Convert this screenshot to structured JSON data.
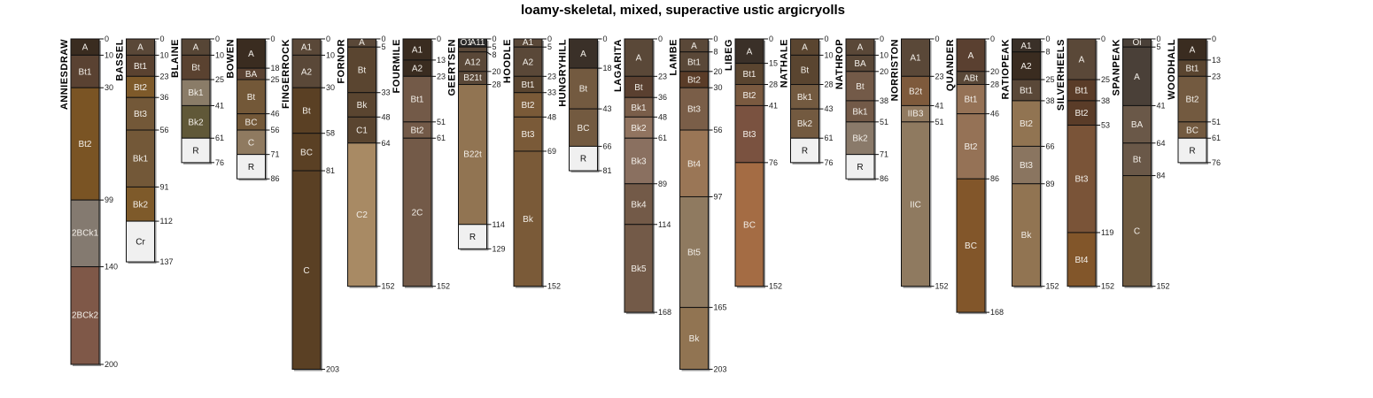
{
  "chart_data": {
    "type": "soil-profile",
    "title": "loamy-skeletal, mixed, superactive ustic argicryolls",
    "depth_unit": "cm",
    "profiles": [
      {
        "name": "ANNIESDRAW",
        "horizons": [
          [
            "A",
            0,
            10,
            "#3a2c20"
          ],
          [
            "Bt1",
            10,
            30,
            "#5a4232"
          ],
          [
            "Bt2",
            30,
            99,
            "#7a5424"
          ],
          [
            "2BCk1",
            99,
            140,
            "#847a70"
          ],
          [
            "2BCk2",
            140,
            200,
            "#7f5848"
          ]
        ]
      },
      {
        "name": "BASSEL",
        "horizons": [
          [
            "A",
            0,
            10,
            "#5a4838"
          ],
          [
            "Bt1",
            10,
            23,
            "#5a4230"
          ],
          [
            "Bt2",
            23,
            36,
            "#7e5a2a"
          ],
          [
            "Bt3",
            36,
            56,
            "#735838"
          ],
          [
            "Bk1",
            56,
            91,
            "#735838"
          ],
          [
            "Bk2",
            91,
            112,
            "#7e5a2a"
          ],
          [
            "Cr",
            112,
            137,
            "#f0f0f0"
          ]
        ]
      },
      {
        "name": "BLAINE",
        "horizons": [
          [
            "A",
            0,
            10,
            "#574636"
          ],
          [
            "Bt",
            10,
            25,
            "#5a4230"
          ],
          [
            "Bk1",
            25,
            41,
            "#8a7c68"
          ],
          [
            "Bk2",
            41,
            61,
            "#605838"
          ],
          [
            "R",
            61,
            76,
            "#f0f0f0"
          ]
        ]
      },
      {
        "name": "BOWEN",
        "horizons": [
          [
            "A",
            0,
            18,
            "#3a2c20"
          ],
          [
            "BA",
            18,
            25,
            "#5a4232"
          ],
          [
            "Bt",
            25,
            46,
            "#735838"
          ],
          [
            "BC",
            46,
            56,
            "#735838"
          ],
          [
            "C",
            56,
            71,
            "#8f7a60"
          ],
          [
            "R",
            71,
            86,
            "#f0f0f0"
          ]
        ]
      },
      {
        "name": "FINGERROCK",
        "horizons": [
          [
            "A1",
            0,
            10,
            "#5a4838"
          ],
          [
            "A2",
            10,
            30,
            "#5a4838"
          ],
          [
            "Bt",
            30,
            58,
            "#5a4024"
          ],
          [
            "BC",
            58,
            81,
            "#5a4024"
          ],
          [
            "C",
            81,
            203,
            "#5a4024"
          ]
        ]
      },
      {
        "name": "FORNOR",
        "horizons": [
          [
            "A",
            0,
            5,
            "#5a4838"
          ],
          [
            "Bt",
            5,
            33,
            "#5a4530"
          ],
          [
            "Bk",
            33,
            48,
            "#5a4530"
          ],
          [
            "C1",
            48,
            64,
            "#5a4530"
          ],
          [
            "C2",
            64,
            152,
            "#a88a64"
          ]
        ]
      },
      {
        "name": "FOURMILE",
        "horizons": [
          [
            "A1",
            0,
            13,
            "#3a2c20"
          ],
          [
            "A2",
            13,
            23,
            "#3a2c20"
          ],
          [
            "Bt1",
            23,
            51,
            "#735a48"
          ],
          [
            "Bt2",
            51,
            61,
            "#735a48"
          ],
          [
            "2C",
            61,
            152,
            "#735a48"
          ]
        ]
      },
      {
        "name": "GEERTSEN",
        "horizons": [
          [
            "O1",
            0,
            5,
            "#2a2a2a"
          ],
          [
            "A11",
            5,
            8,
            "#5a4838"
          ],
          [
            "A12",
            8,
            20,
            "#5a4838"
          ],
          [
            "B21t",
            20,
            28,
            "#5a4838"
          ],
          [
            "B22t",
            28,
            114,
            "#917452"
          ],
          [
            "R",
            114,
            129,
            "#f0f0f0"
          ]
        ]
      },
      {
        "name": "HOODLE",
        "horizons": [
          [
            "A1",
            0,
            5,
            "#5a4838"
          ],
          [
            "A2",
            5,
            23,
            "#5a4838"
          ],
          [
            "Bt1",
            23,
            33,
            "#5a4530"
          ],
          [
            "Bt2",
            33,
            48,
            "#7a5a38"
          ],
          [
            "Bt3",
            48,
            69,
            "#7a5a38"
          ],
          [
            "Bk",
            69,
            152,
            "#7a5a38"
          ]
        ]
      },
      {
        "name": "HUNGRYHILL",
        "horizons": [
          [
            "A",
            0,
            18,
            "#3a3028"
          ],
          [
            "Bt",
            18,
            43,
            "#735a40"
          ],
          [
            "BC",
            43,
            66,
            "#735a40"
          ],
          [
            "R",
            66,
            81,
            "#f0f0f0"
          ]
        ]
      },
      {
        "name": "LAGARITA",
        "horizons": [
          [
            "A",
            0,
            23,
            "#5a4838"
          ],
          [
            "Bt",
            23,
            36,
            "#5a4030"
          ],
          [
            "Bk1",
            36,
            48,
            "#7a5e4a"
          ],
          [
            "Bk2",
            48,
            61,
            "#917460"
          ],
          [
            "Bk3",
            61,
            89,
            "#8a7060"
          ],
          [
            "Bk4",
            89,
            114,
            "#735a48"
          ],
          [
            "Bk5",
            114,
            168,
            "#735a48"
          ]
        ]
      },
      {
        "name": "LAMBE",
        "horizons": [
          [
            "A",
            0,
            8,
            "#5a4838"
          ],
          [
            "Bt1",
            8,
            20,
            "#5a4838"
          ],
          [
            "Bt2",
            20,
            30,
            "#5a3c28"
          ],
          [
            "Bt3",
            30,
            56,
            "#7a5e48"
          ],
          [
            "Bt4",
            56,
            97,
            "#9a7656"
          ],
          [
            "Bt5",
            97,
            165,
            "#8f7a60"
          ],
          [
            "Bk",
            165,
            203,
            "#917452"
          ]
        ]
      },
      {
        "name": "LIBEG",
        "horizons": [
          [
            "A",
            0,
            15,
            "#3a3028"
          ],
          [
            "Bt1",
            15,
            28,
            "#5a4530"
          ],
          [
            "Bt2",
            28,
            41,
            "#7a5a40"
          ],
          [
            "Bt3",
            41,
            76,
            "#7a5240"
          ],
          [
            "BC",
            76,
            152,
            "#a46c44"
          ]
        ]
      },
      {
        "name": "NATHALE",
        "horizons": [
          [
            "A",
            0,
            10,
            "#5a4530"
          ],
          [
            "Bt",
            10,
            28,
            "#5a4530"
          ],
          [
            "Bk1",
            28,
            43,
            "#735a40"
          ],
          [
            "Bk2",
            43,
            61,
            "#735a40"
          ],
          [
            "R",
            61,
            76,
            "#f0f0f0"
          ]
        ]
      },
      {
        "name": "NATHROP",
        "horizons": [
          [
            "A",
            0,
            10,
            "#5a4838"
          ],
          [
            "BA",
            10,
            20,
            "#5a4838"
          ],
          [
            "Bt",
            20,
            38,
            "#735a48"
          ],
          [
            "Bk1",
            38,
            51,
            "#735a48"
          ],
          [
            "Bk2",
            51,
            71,
            "#8a7a6a"
          ],
          [
            "R",
            71,
            86,
            "#f0f0f0"
          ]
        ]
      },
      {
        "name": "NORRISTON",
        "horizons": [
          [
            "A1",
            0,
            23,
            "#5a4838"
          ],
          [
            "B2t",
            23,
            41,
            "#7e5a3c"
          ],
          [
            "IIB3",
            41,
            51,
            "#917a60"
          ],
          [
            "IIC",
            51,
            152,
            "#8f7a60"
          ]
        ]
      },
      {
        "name": "QUANDER",
        "horizons": [
          [
            "A",
            0,
            20,
            "#5a4030"
          ],
          [
            "ABt",
            20,
            28,
            "#5a4838"
          ],
          [
            "Bt1",
            28,
            46,
            "#957256"
          ],
          [
            "Bt2",
            46,
            86,
            "#957256"
          ],
          [
            "BC",
            86,
            168,
            "#82562a"
          ]
        ]
      },
      {
        "name": "RATIOPEAK",
        "horizons": [
          [
            "A1",
            0,
            8,
            "#3a3028"
          ],
          [
            "A2",
            8,
            25,
            "#3a2c20"
          ],
          [
            "Bt1",
            25,
            38,
            "#5a4838"
          ],
          [
            "Bt2",
            38,
            66,
            "#917452"
          ],
          [
            "Bt3",
            66,
            89,
            "#8a7560"
          ],
          [
            "Bk",
            89,
            152,
            "#917452"
          ]
        ]
      },
      {
        "name": "SILVERHEELS",
        "horizons": [
          [
            "A",
            0,
            25,
            "#5a4838"
          ],
          [
            "Bt1",
            25,
            38,
            "#5a3c28"
          ],
          [
            "Bt2",
            38,
            53,
            "#5a3c28"
          ],
          [
            "Bt3",
            53,
            119,
            "#7a5438"
          ],
          [
            "Bt4",
            119,
            152,
            "#82562a"
          ]
        ]
      },
      {
        "name": "SPANPEAK",
        "horizons": [
          [
            "Oi",
            0,
            5,
            "#4a4038"
          ],
          [
            "A",
            5,
            41,
            "#4a4038"
          ],
          [
            "BA",
            41,
            64,
            "#6a5848"
          ],
          [
            "Bt",
            64,
            84,
            "#6a5848"
          ],
          [
            "C",
            84,
            152,
            "#6f5a40"
          ]
        ]
      },
      {
        "name": "WOODHALL",
        "horizons": [
          [
            "A",
            0,
            13,
            "#3a2c20"
          ],
          [
            "Bt1",
            13,
            23,
            "#5a4530"
          ],
          [
            "Bt2",
            23,
            51,
            "#735a40"
          ],
          [
            "BC",
            51,
            61,
            "#735a40"
          ],
          [
            "R",
            61,
            76,
            "#f0f0f0"
          ]
        ]
      }
    ]
  }
}
